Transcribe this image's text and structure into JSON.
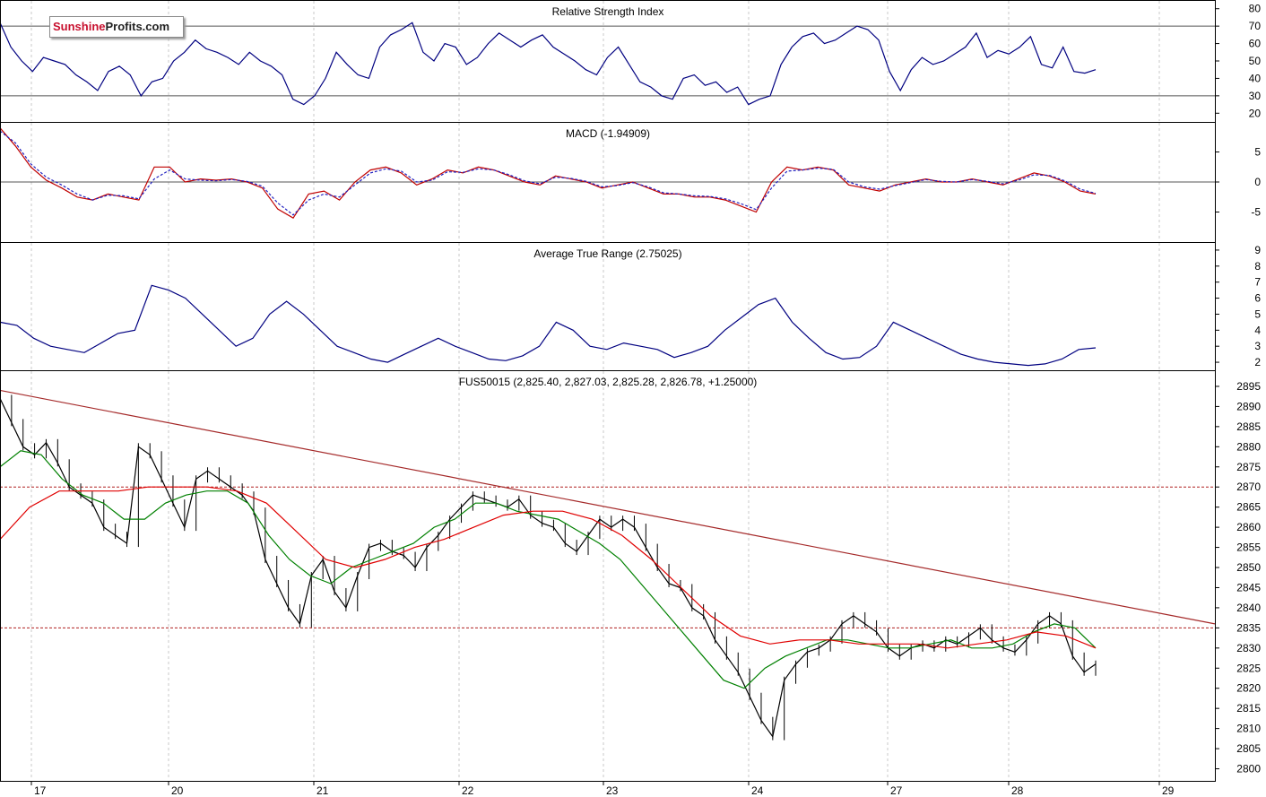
{
  "logo": {
    "part1": "Sunshine",
    "part2": "Profits.com"
  },
  "chart_data": {
    "type": "line",
    "x_ticks": [
      "17",
      "20",
      "21",
      "22",
      "23",
      "24",
      "27",
      "28",
      "29"
    ],
    "panels": {
      "rsi": {
        "title": "Relative Strength Index",
        "ylim": [
          15,
          85
        ],
        "y_ticks": [
          20,
          30,
          40,
          50,
          60,
          70,
          80
        ],
        "ref_lines": [
          30,
          70
        ],
        "series": [
          {
            "color": "#000080",
            "values": [
              72,
              58,
              50,
              44,
              52,
              50,
              48,
              42,
              38,
              33,
              44,
              47,
              42,
              30,
              38,
              40,
              50,
              55,
              62,
              57,
              55,
              52,
              48,
              55,
              50,
              47,
              42,
              28,
              25,
              30,
              40,
              55,
              48,
              42,
              40,
              58,
              65,
              68,
              72,
              55,
              50,
              60,
              58,
              48,
              52,
              60,
              66,
              62,
              58,
              62,
              65,
              58,
              54,
              50,
              45,
              42,
              52,
              58,
              48,
              38,
              35,
              30,
              28,
              40,
              42,
              36,
              38,
              32,
              35,
              25,
              28,
              30,
              48,
              58,
              64,
              66,
              60,
              62,
              66,
              70,
              68,
              62,
              44,
              33,
              45,
              52,
              48,
              50,
              54,
              58,
              66,
              52,
              56,
              54,
              58,
              64,
              48,
              46,
              58,
              44,
              43,
              45
            ]
          }
        ]
      },
      "macd": {
        "title": "MACD (-1.94909)",
        "ylim": [
          -10,
          10
        ],
        "y_ticks": [
          5,
          0,
          -5
        ],
        "zero_line": true,
        "series": [
          {
            "color": "#c00000",
            "values": [
              9,
              6,
              2.5,
              0.3,
              -1,
              -2.5,
              -3,
              -2,
              -2.5,
              -3,
              2.5,
              2.5,
              0,
              0.5,
              0.3,
              0.5,
              0,
              -1,
              -4.5,
              -6,
              -2,
              -1.5,
              -3,
              0,
              2,
              2.5,
              1.5,
              -0.5,
              0.5,
              2,
              1.5,
              2.5,
              2,
              1,
              0,
              -0.5,
              1,
              0.5,
              0,
              -1,
              -0.5,
              0,
              -1,
              -2,
              -2,
              -2.5,
              -2.5,
              -3,
              -4,
              -5,
              0,
              2.5,
              2,
              2.5,
              2,
              -0.5,
              -1,
              -1.5,
              -0.5,
              0,
              0.5,
              0,
              0,
              0.5,
              0,
              -0.5,
              0.5,
              1.5,
              1,
              0,
              -1.5,
              -2
            ]
          },
          {
            "color": "#2020c0",
            "dashed": true,
            "values": [
              8.5,
              6.5,
              3,
              0.8,
              -0.5,
              -2,
              -3,
              -2.2,
              -2.3,
              -2.8,
              0.5,
              2,
              0.5,
              0.3,
              0.2,
              0.4,
              0.1,
              -0.7,
              -3.5,
              -5.5,
              -3,
              -2,
              -2.5,
              -0.5,
              1.5,
              2.2,
              1.8,
              0,
              0.3,
              1.7,
              1.6,
              2.2,
              2,
              1.2,
              0.2,
              -0.3,
              0.8,
              0.6,
              0.1,
              -0.8,
              -0.6,
              -0.1,
              -0.8,
              -1.8,
              -2,
              -2.3,
              -2.4,
              -2.8,
              -3.6,
              -4.6,
              -1,
              1.8,
              2,
              2.3,
              2.1,
              0,
              -0.8,
              -1.2,
              -0.6,
              -0.1,
              0.4,
              0.1,
              0,
              0.4,
              0.1,
              -0.3,
              0.3,
              1.2,
              1.1,
              0.2,
              -1.2,
              -1.9
            ]
          }
        ]
      },
      "atr": {
        "title": "Average True Range (2.75025)",
        "ylim": [
          1.5,
          9.5
        ],
        "y_ticks": [
          2,
          3,
          4,
          5,
          6,
          7,
          8,
          9
        ],
        "series": [
          {
            "color": "#000080",
            "values": [
              4.5,
              4.3,
              3.5,
              3,
              2.8,
              2.6,
              3.2,
              3.8,
              4,
              6.8,
              6.5,
              6,
              5,
              4,
              3,
              3.5,
              5,
              5.8,
              5,
              4,
              3,
              2.6,
              2.2,
              2,
              2.5,
              3,
              3.5,
              3,
              2.6,
              2.2,
              2.1,
              2.4,
              3,
              4.5,
              4,
              3,
              2.8,
              3.2,
              3,
              2.8,
              2.3,
              2.6,
              3,
              4,
              4.8,
              5.6,
              6,
              4.5,
              3.5,
              2.6,
              2.2,
              2.3,
              3,
              4.5,
              4,
              3.5,
              3,
              2.5,
              2.2,
              2,
              1.9,
              1.8,
              1.9,
              2.2,
              2.8,
              2.9
            ]
          }
        ]
      },
      "price": {
        "title": "FUS50015 (2,825.40, 2,827.03, 2,825.28, 2,826.78, +1.25000)",
        "ylim": [
          2797,
          2899
        ],
        "y_ticks": [
          2800,
          2805,
          2810,
          2815,
          2820,
          2825,
          2830,
          2835,
          2840,
          2845,
          2850,
          2855,
          2860,
          2865,
          2870,
          2875,
          2880,
          2885,
          2890,
          2895
        ],
        "support_lines": [
          2870,
          2835
        ],
        "trendline": [
          2894,
          2836
        ],
        "series": [
          {
            "name": "price",
            "color": "#000000",
            "values": [
              2892,
              2886,
              2880,
              2878,
              2881,
              2876,
              2870,
              2868,
              2866,
              2860,
              2858,
              2856,
              2880,
              2878,
              2872,
              2866,
              2860,
              2872,
              2874,
              2872,
              2870,
              2868,
              2864,
              2852,
              2846,
              2840,
              2836,
              2848,
              2852,
              2844,
              2840,
              2848,
              2855,
              2856,
              2854,
              2853,
              2850,
              2855,
              2858,
              2862,
              2865,
              2868,
              2867,
              2866,
              2865,
              2867,
              2863,
              2861,
              2860,
              2856,
              2854,
              2858,
              2862,
              2860,
              2862,
              2860,
              2855,
              2850,
              2846,
              2845,
              2840,
              2838,
              2832,
              2828,
              2824,
              2818,
              2812,
              2808,
              2822,
              2826,
              2829,
              2830,
              2832,
              2836,
              2838,
              2836,
              2834,
              2830,
              2828,
              2830,
              2831,
              2830,
              2832,
              2831,
              2833,
              2835,
              2832,
              2830,
              2829,
              2832,
              2836,
              2838,
              2836,
              2828,
              2824,
              2826
            ]
          },
          {
            "name": "ma20",
            "color": "#008000",
            "values": [
              2875,
              2879,
              2878,
              2872,
              2868,
              2866,
              2862,
              2862,
              2866,
              2868,
              2869,
              2869,
              2866,
              2858,
              2852,
              2848,
              2846,
              2850,
              2852,
              2854,
              2856,
              2860,
              2862,
              2866,
              2866,
              2864,
              2863,
              2862,
              2859,
              2856,
              2852,
              2846,
              2840,
              2834,
              2828,
              2822,
              2820,
              2825,
              2828,
              2830,
              2832,
              2832,
              2831,
              2830,
              2830,
              2831,
              2832,
              2830,
              2830,
              2831,
              2834,
              2836,
              2835,
              2830
            ]
          },
          {
            "name": "ma50",
            "color": "#e00000",
            "values": [
              2857,
              2865,
              2869,
              2869,
              2869,
              2870,
              2870,
              2870,
              2869,
              2866,
              2859,
              2852,
              2850,
              2852,
              2855,
              2857,
              2860,
              2863,
              2864,
              2864,
              2862,
              2858,
              2852,
              2845,
              2838,
              2833,
              2831,
              2832,
              2832,
              2831,
              2831,
              2831,
              2830,
              2831,
              2832,
              2834,
              2833,
              2830
            ]
          }
        ]
      }
    }
  }
}
